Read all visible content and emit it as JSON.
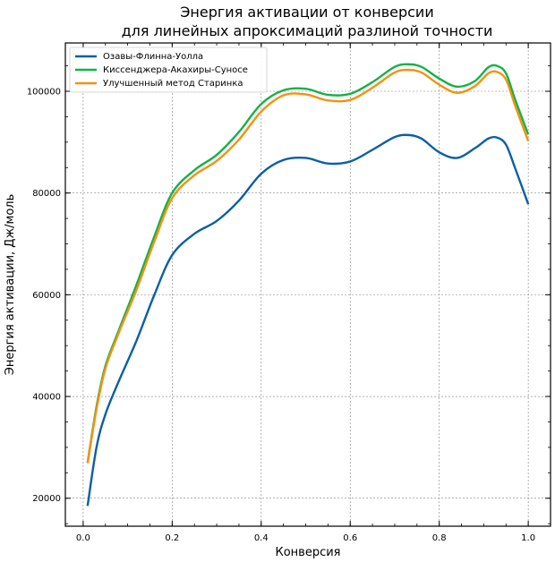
{
  "chart_data": {
    "type": "line",
    "title": [
      "Энергия активации от конверсии",
      "для линейных апроксимаций разлиной точности"
    ],
    "xlabel": "Конверсия",
    "ylabel": "Энергия активации, Дж/моль",
    "xlim": [
      -0.04,
      1.05
    ],
    "ylim": [
      14500,
      109500
    ],
    "xticks": [
      0.0,
      0.2,
      0.4,
      0.6,
      0.8,
      1.0
    ],
    "xtick_labels": [
      "0.0",
      "0.2",
      "0.4",
      "0.6",
      "0.8",
      "1.0"
    ],
    "yticks": [
      20000,
      40000,
      60000,
      80000,
      100000
    ],
    "ytick_labels": [
      "20000",
      "40000",
      "60000",
      "80000",
      "100000"
    ],
    "grid": true,
    "legend_position": "top-left",
    "x": [
      0.01,
      0.03,
      0.05,
      0.08,
      0.12,
      0.16,
      0.2,
      0.25,
      0.3,
      0.35,
      0.4,
      0.45,
      0.5,
      0.55,
      0.6,
      0.65,
      0.7,
      0.73,
      0.76,
      0.8,
      0.84,
      0.88,
      0.91,
      0.93,
      0.95,
      0.97,
      1.0
    ],
    "series": [
      {
        "name": "Озавы-Флинна-Уолла",
        "color": "#0b5ea8",
        "values": [
          18500,
          30000,
          36500,
          43000,
          51000,
          60000,
          67800,
          72000,
          74500,
          78500,
          83800,
          86500,
          86900,
          85800,
          86200,
          88500,
          91000,
          91400,
          90700,
          88000,
          86900,
          88800,
          90700,
          90900,
          89500,
          85000,
          77800
        ]
      },
      {
        "name": "Киссенджера-Акахиры-Суносе",
        "color": "#12b347",
        "values": [
          27000,
          38000,
          46000,
          53000,
          62000,
          71500,
          80000,
          84500,
          87500,
          92000,
          97500,
          100200,
          100500,
          99300,
          99500,
          101800,
          104800,
          105300,
          104800,
          102500,
          100900,
          102000,
          104700,
          105000,
          103500,
          98500,
          91500
        ]
      },
      {
        "name": "Улучшенный метод Старинка",
        "color": "#f39111",
        "values": [
          26900,
          37500,
          45500,
          52500,
          61000,
          70500,
          79000,
          83500,
          86300,
          90500,
          96000,
          99200,
          99400,
          98200,
          98300,
          100700,
          103700,
          104200,
          103700,
          101300,
          99700,
          101000,
          103500,
          103800,
          102300,
          97300,
          90200
        ]
      }
    ]
  }
}
